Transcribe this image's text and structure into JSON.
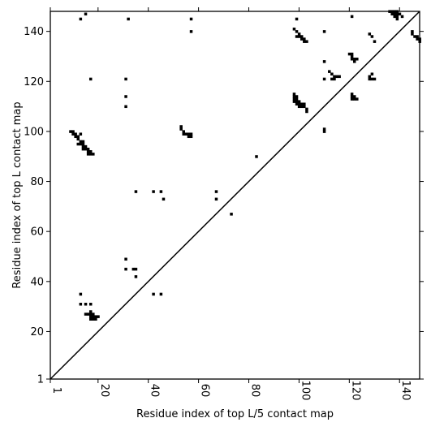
{
  "chart_data": {
    "type": "scatter",
    "xlabel": "Residue index of top L/5 contact map",
    "ylabel": "Residue index of top L contact map",
    "xlim": [
      1,
      148
    ],
    "ylim": [
      1,
      148
    ],
    "x_ticks": [
      1,
      20,
      40,
      60,
      80,
      100,
      120,
      140
    ],
    "y_ticks": [
      1,
      20,
      40,
      60,
      80,
      100,
      120,
      140
    ],
    "diagonal": true,
    "marker": "square",
    "color": "#000000",
    "points": [
      [
        13,
        145
      ],
      [
        15,
        147
      ],
      [
        17,
        121
      ],
      [
        32,
        145
      ],
      [
        57,
        145
      ],
      [
        57,
        140
      ],
      [
        99,
        145
      ],
      [
        110,
        140
      ],
      [
        121,
        146
      ],
      [
        31,
        121
      ],
      [
        31,
        114
      ],
      [
        31,
        110
      ],
      [
        98,
        141
      ],
      [
        99,
        140
      ],
      [
        100,
        139
      ],
      [
        101,
        138
      ],
      [
        102,
        137
      ],
      [
        103,
        136
      ],
      [
        99,
        138
      ],
      [
        100,
        138
      ],
      [
        101,
        137
      ],
      [
        102,
        136
      ],
      [
        110,
        128
      ],
      [
        110,
        121
      ],
      [
        112,
        124
      ],
      [
        113,
        123
      ],
      [
        114,
        122
      ],
      [
        115,
        122
      ],
      [
        116,
        122
      ],
      [
        113,
        121
      ],
      [
        114,
        121
      ],
      [
        120,
        131
      ],
      [
        121,
        131
      ],
      [
        121,
        130
      ],
      [
        122,
        129
      ],
      [
        123,
        129
      ],
      [
        121,
        129
      ],
      [
        122,
        128
      ],
      [
        128,
        139
      ],
      [
        129,
        138
      ],
      [
        130,
        136
      ],
      [
        128,
        122
      ],
      [
        129,
        123
      ],
      [
        128,
        121
      ],
      [
        129,
        121
      ],
      [
        130,
        121
      ],
      [
        98,
        115
      ],
      [
        98,
        114
      ],
      [
        99,
        114
      ],
      [
        98,
        113
      ],
      [
        99,
        113
      ],
      [
        100,
        112
      ],
      [
        99,
        112
      ],
      [
        98,
        112
      ],
      [
        99,
        111
      ],
      [
        100,
        111
      ],
      [
        101,
        111
      ],
      [
        102,
        111
      ],
      [
        100,
        110
      ],
      [
        101,
        110
      ],
      [
        102,
        110
      ],
      [
        103,
        109
      ],
      [
        103,
        108
      ],
      [
        110,
        101
      ],
      [
        110,
        100
      ],
      [
        121,
        115
      ],
      [
        121,
        114
      ],
      [
        122,
        114
      ],
      [
        121,
        113
      ],
      [
        122,
        113
      ],
      [
        123,
        113
      ],
      [
        136,
        148
      ],
      [
        137,
        148
      ],
      [
        138,
        148
      ],
      [
        139,
        148
      ],
      [
        137,
        147
      ],
      [
        138,
        147
      ],
      [
        139,
        147
      ],
      [
        140,
        147
      ],
      [
        138,
        146
      ],
      [
        139,
        146
      ],
      [
        141,
        146
      ],
      [
        139,
        145
      ],
      [
        145,
        140
      ],
      [
        145,
        139
      ],
      [
        146,
        138
      ],
      [
        147,
        138
      ],
      [
        147,
        137
      ],
      [
        148,
        137
      ],
      [
        148,
        136
      ],
      [
        9,
        100
      ],
      [
        10,
        100
      ],
      [
        10,
        99
      ],
      [
        11,
        99
      ],
      [
        12,
        98
      ],
      [
        11,
        98
      ],
      [
        13,
        99
      ],
      [
        12,
        97
      ],
      [
        13,
        96
      ],
      [
        14,
        96
      ],
      [
        12,
        95
      ],
      [
        13,
        95
      ],
      [
        14,
        95
      ],
      [
        14,
        94
      ],
      [
        15,
        94
      ],
      [
        14,
        93
      ],
      [
        15,
        93
      ],
      [
        16,
        93
      ],
      [
        16,
        92
      ],
      [
        17,
        92
      ],
      [
        16,
        91
      ],
      [
        17,
        91
      ],
      [
        18,
        91
      ],
      [
        53,
        102
      ],
      [
        53,
        101
      ],
      [
        54,
        100
      ],
      [
        55,
        99
      ],
      [
        54,
        99
      ],
      [
        56,
        99
      ],
      [
        56,
        98
      ],
      [
        57,
        98
      ],
      [
        57,
        99
      ],
      [
        35,
        76
      ],
      [
        42,
        76
      ],
      [
        45,
        76
      ],
      [
        46,
        73
      ],
      [
        67,
        76
      ],
      [
        67,
        73
      ],
      [
        73,
        67
      ],
      [
        83,
        90
      ],
      [
        31,
        49
      ],
      [
        31,
        45
      ],
      [
        34,
        45
      ],
      [
        35,
        45
      ],
      [
        35,
        42
      ],
      [
        42,
        35
      ],
      [
        45,
        35
      ],
      [
        13,
        35
      ],
      [
        13,
        31
      ],
      [
        15,
        31
      ],
      [
        17,
        31
      ],
      [
        15,
        27
      ],
      [
        16,
        27
      ],
      [
        17,
        28
      ],
      [
        17,
        27
      ],
      [
        18,
        27
      ],
      [
        17,
        26
      ],
      [
        18,
        26
      ],
      [
        19,
        26
      ],
      [
        20,
        26
      ],
      [
        17,
        25
      ],
      [
        18,
        25
      ],
      [
        19,
        25
      ]
    ]
  }
}
